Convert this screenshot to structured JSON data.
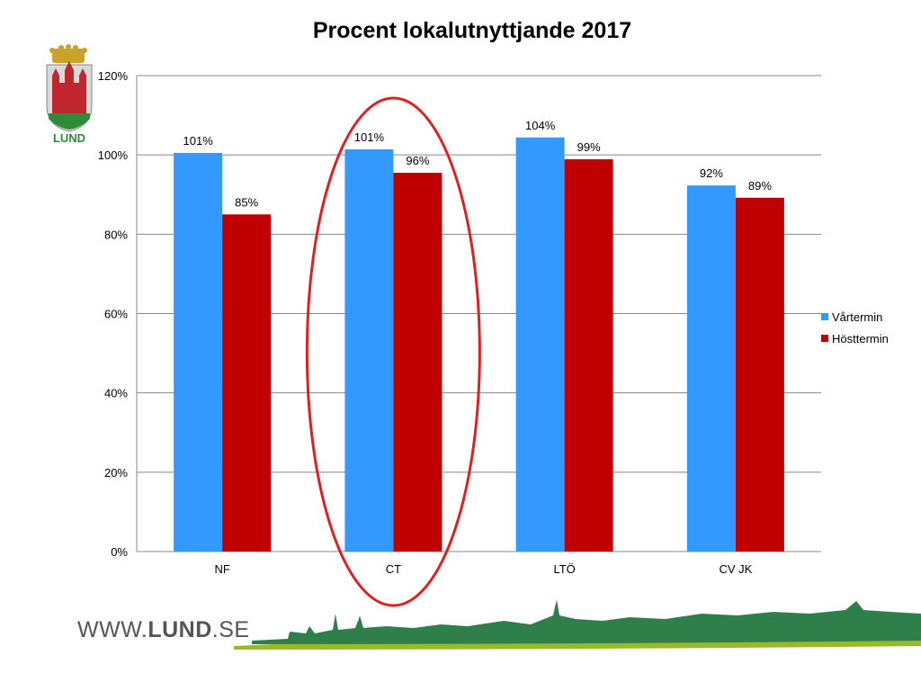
{
  "slide": {
    "title": "Procent lokalutnyttjande 2017",
    "footer_prefix": "WWW.",
    "footer_bold": "LUND",
    "footer_suffix": ".SE",
    "logo_text": "LUND"
  },
  "colors": {
    "series_1": "#3399ff",
    "series_2": "#c00000",
    "highlight": "#e02020",
    "logo_green": "#2e8b3a"
  },
  "chart_data": {
    "type": "bar",
    "title": "Procent lokalutnyttjande 2017",
    "categories": [
      "NF",
      "CT",
      "LTÖ",
      "CV JK"
    ],
    "series": [
      {
        "name": "Vårtermin",
        "values": [
          100.5,
          101.4,
          104.4,
          92.3
        ],
        "labels": [
          "101%",
          "101%",
          "104%",
          "92%"
        ]
      },
      {
        "name": "Hösttermin",
        "values": [
          85,
          95.5,
          98.9,
          89.2
        ],
        "labels": [
          "85%",
          "96%",
          "99%",
          "89%"
        ]
      }
    ],
    "ylim": [
      0,
      120
    ],
    "yticks": [
      "0%",
      "20%",
      "40%",
      "60%",
      "80%",
      "100%",
      "120%"
    ],
    "grid": true,
    "legend": "right",
    "highlighted_category": "CT"
  }
}
